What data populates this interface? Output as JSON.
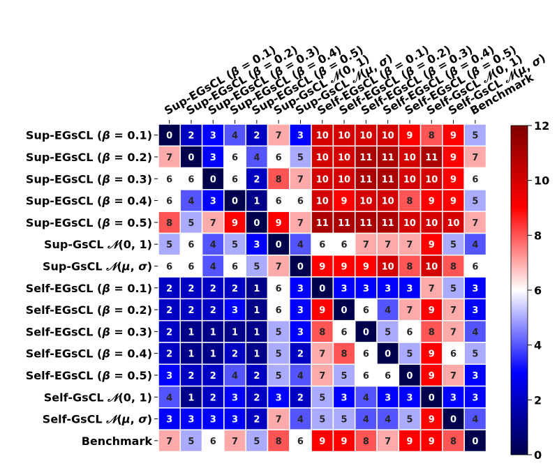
{
  "chart_data": {
    "type": "heatmap",
    "title": "",
    "rows": [
      "Sup-EGsCL (β = 0.1)",
      "Sup-EGsCL (β = 0.2)",
      "Sup-EGsCL (β = 0.3)",
      "Sup-EGsCL (β = 0.4)",
      "Sup-EGsCL (β = 0.5)",
      "Sup-GsCL 𝒩(0, 1)",
      "Sup-GsCL 𝒩(μ, σ)",
      "Self-EGsCL (β = 0.1)",
      "Self-EGsCL (β = 0.2)",
      "Self-EGsCL (β = 0.3)",
      "Self-EGsCL (β = 0.4)",
      "Self-EGsCL (β = 0.5)",
      "Self-GsCL 𝒩(0, 1)",
      "Self-GsCL 𝒩(μ, σ)",
      "Benchmark"
    ],
    "columns": [
      "Sup-EGsCL (β = 0.1)",
      "Sup-EGsCL (β = 0.2)",
      "Sup-EGsCL (β = 0.3)",
      "Sup-EGsCL (β = 0.4)",
      "Sup-EGsCL (β = 0.5)",
      "Sup-GsCL 𝒩(0, 1)",
      "Sup-GsCL 𝒩(μ, σ)",
      "Self-EGsCL (β = 0.1)",
      "Self-EGsCL (β = 0.2)",
      "Self-EGsCL (β = 0.3)",
      "Self-EGsCL (β = 0.4)",
      "Self-EGsCL (β = 0.5)",
      "Self-GsCL 𝒩(0, 1)",
      "Self-GsCL 𝒩(μ, σ)",
      "Benchmark"
    ],
    "values": [
      [
        0,
        2,
        3,
        4,
        2,
        7,
        3,
        10,
        10,
        10,
        10,
        9,
        8,
        9,
        5
      ],
      [
        7,
        0,
        3,
        6,
        4,
        6,
        5,
        10,
        10,
        11,
        11,
        10,
        11,
        9,
        7
      ],
      [
        6,
        6,
        0,
        6,
        2,
        8,
        7,
        10,
        10,
        11,
        11,
        10,
        10,
        9,
        6
      ],
      [
        6,
        4,
        3,
        0,
        1,
        6,
        6,
        10,
        9,
        10,
        10,
        8,
        9,
        9,
        5
      ],
      [
        8,
        5,
        7,
        9,
        0,
        9,
        7,
        11,
        11,
        11,
        11,
        10,
        10,
        10,
        7
      ],
      [
        5,
        6,
        4,
        5,
        3,
        0,
        4,
        6,
        6,
        7,
        7,
        7,
        9,
        5,
        4
      ],
      [
        6,
        6,
        4,
        6,
        5,
        7,
        0,
        9,
        9,
        9,
        10,
        8,
        10,
        8,
        6
      ],
      [
        2,
        2,
        2,
        2,
        1,
        6,
        3,
        0,
        3,
        3,
        3,
        3,
        7,
        5,
        3
      ],
      [
        2,
        2,
        2,
        3,
        1,
        6,
        3,
        9,
        0,
        6,
        4,
        7,
        9,
        7,
        3
      ],
      [
        2,
        1,
        1,
        1,
        1,
        5,
        3,
        8,
        6,
        0,
        5,
        6,
        8,
        7,
        4
      ],
      [
        2,
        1,
        1,
        2,
        1,
        5,
        2,
        7,
        8,
        6,
        0,
        5,
        9,
        6,
        5
      ],
      [
        3,
        2,
        2,
        4,
        2,
        5,
        4,
        7,
        5,
        6,
        6,
        0,
        9,
        7,
        3
      ],
      [
        4,
        1,
        2,
        3,
        2,
        3,
        2,
        5,
        3,
        4,
        3,
        3,
        0,
        3,
        3
      ],
      [
        3,
        3,
        3,
        3,
        2,
        7,
        4,
        5,
        5,
        4,
        4,
        5,
        9,
        0,
        4
      ],
      [
        7,
        5,
        6,
        7,
        5,
        8,
        6,
        9,
        9,
        8,
        7,
        9,
        9,
        8,
        0
      ]
    ],
    "vmin": 0,
    "vmax": 12,
    "colormap": "seismic",
    "colorbar_ticks": [
      "0",
      "2",
      "4",
      "6",
      "8",
      "10",
      "12"
    ],
    "grid": true,
    "legend": "right"
  }
}
